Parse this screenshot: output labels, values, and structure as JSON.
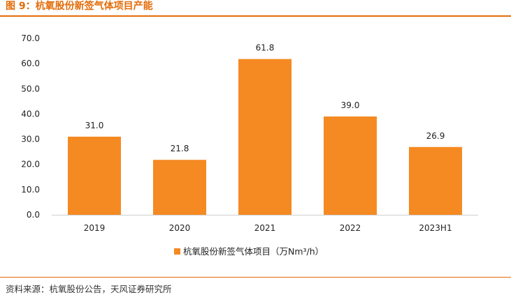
{
  "figure": {
    "title": "图 9：杭氧股份新签气体项目产能",
    "source": "资料来源：杭氧股份公告，天风证券研究所"
  },
  "colors": {
    "accent": "#e36c09",
    "bar": "#f58a22"
  },
  "chart_data": {
    "type": "bar",
    "categories": [
      "2019",
      "2020",
      "2021",
      "2022",
      "2023H1"
    ],
    "series": [
      {
        "name": "杭氧股份新签气体项目（万Nm³/h）",
        "values": [
          31.0,
          21.8,
          61.8,
          39.0,
          26.9
        ]
      }
    ],
    "data_labels": [
      "31.0",
      "21.8",
      "61.8",
      "39.0",
      "26.9"
    ],
    "y_ticks": [
      "0.0",
      "10.0",
      "20.0",
      "30.0",
      "40.0",
      "50.0",
      "60.0",
      "70.0"
    ],
    "ylim": [
      0,
      70
    ],
    "grid": false,
    "legend_position": "bottom"
  }
}
